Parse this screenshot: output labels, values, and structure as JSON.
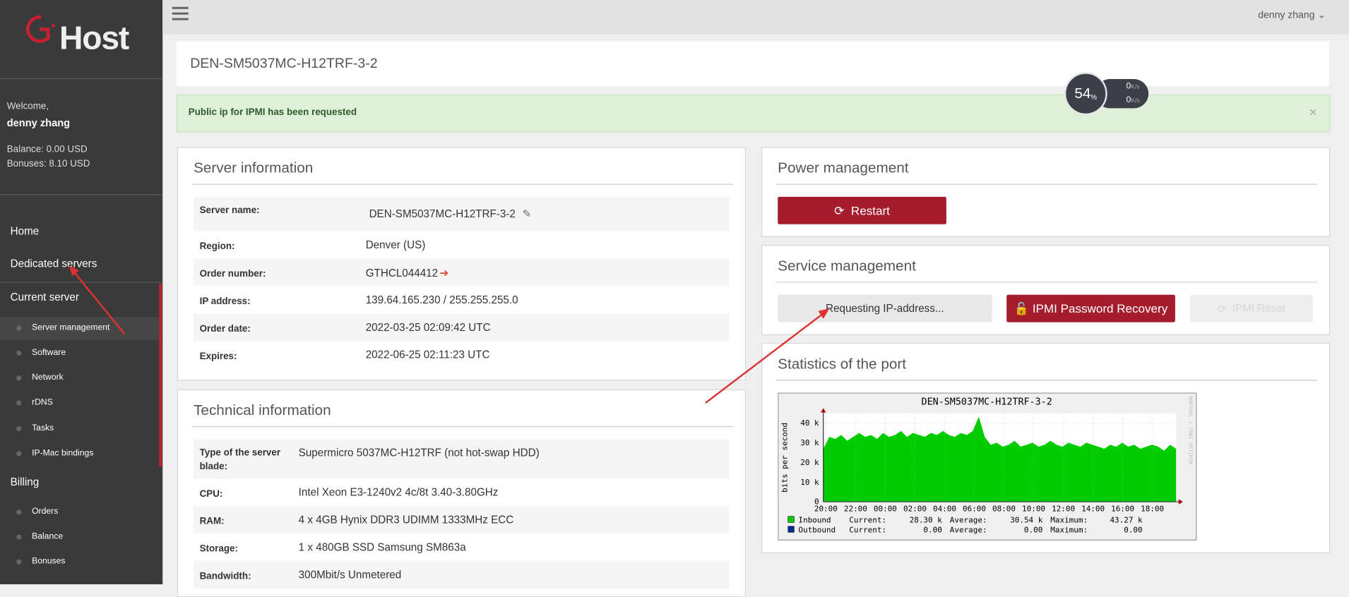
{
  "sidebar": {
    "logo": "Host",
    "welcome": "Welcome,",
    "user": "denny zhang",
    "balance": "Balance: 0.00 USD",
    "bonuses": "Bonuses: 8.10 USD",
    "menu": [
      {
        "label": "Home",
        "level": 0
      },
      {
        "label": "Dedicated servers",
        "level": 0
      },
      {
        "label": "Current server",
        "level": 0
      },
      {
        "label": "Server management",
        "level": 1,
        "active": true
      },
      {
        "label": "Software",
        "level": 1
      },
      {
        "label": "Network",
        "level": 1
      },
      {
        "label": "rDNS",
        "level": 1
      },
      {
        "label": "Tasks",
        "level": 1
      },
      {
        "label": "IP-Mac bindings",
        "level": 1
      },
      {
        "label": "Billing",
        "level": 0
      },
      {
        "label": "Orders",
        "level": 1
      },
      {
        "label": "Balance",
        "level": 1
      },
      {
        "label": "Bonuses",
        "level": 1
      }
    ]
  },
  "topbar": {
    "user": "denny zhang"
  },
  "page_title": "DEN-SM5037MC-H12TRF-3-2",
  "alert": "Public ip for IPMI has been requested",
  "widget": {
    "load": "54",
    "load_unit": "%",
    "up": "0",
    "down": "0",
    "rate_unit": "K/s"
  },
  "server_info": {
    "title": "Server information",
    "rows": [
      [
        "Server name:",
        "DEN-SM5037MC-H12TRF-3-2"
      ],
      [
        "Region:",
        "Denver (US)"
      ],
      [
        "Order number:",
        "GTHCL044412"
      ],
      [
        "IP address:",
        "139.64.165.230 / 255.255.255.0"
      ],
      [
        "Order date:",
        "2022-03-25 02:09:42 UTC"
      ],
      [
        "Expires:",
        "2022-06-25 02:11:23 UTC"
      ]
    ]
  },
  "technical_info": {
    "title": "Technical information",
    "rows": [
      [
        "Type of the server blade:",
        "Supermicro 5037MC-H12TRF (not hot-swap HDD)"
      ],
      [
        "CPU:",
        "Intel Xeon E3-1240v2 4c/8t 3.40-3.80GHz"
      ],
      [
        "RAM:",
        "4 x 4GB Hynix DDR3 UDIMM 1333MHz ECC"
      ],
      [
        "Storage:",
        "1 x 480GB SSD Samsung SM863a"
      ],
      [
        "Bandwidth:",
        "300Mbit/s Unmetered"
      ]
    ]
  },
  "power": {
    "title": "Power management",
    "restart": "Restart"
  },
  "service": {
    "title": "Service management",
    "status": "Requesting IP-address...",
    "recovery": "IPMI Password Recovery",
    "reset": "IPMI Reset"
  },
  "stats": {
    "title": "Statistics of the port",
    "graph": {
      "type": "area",
      "title": "DEN-SM5037MC-H12TRF-3-2",
      "y_label": "bits per second",
      "watermark": "RRDTOOL / TOBI OETIKER",
      "xticks": [
        "20:00",
        "22:00",
        "00:00",
        "02:00",
        "04:00",
        "06:00",
        "08:00",
        "10:00",
        "12:00",
        "14:00",
        "16:00",
        "18:00"
      ],
      "ylim": [
        0,
        45
      ],
      "yticks": [
        0,
        {
          "value": 10,
          "label": "10 k"
        },
        {
          "value": 20,
          "label": "20 k"
        },
        {
          "value": 30,
          "label": "30 k"
        },
        {
          "value": 40,
          "label": "40 k"
        }
      ],
      "color": "#00cc00",
      "values": [
        27,
        33,
        32,
        34,
        31,
        33,
        35,
        33,
        34,
        32,
        35,
        33,
        34,
        36,
        33,
        35,
        34,
        33,
        35,
        34,
        36,
        34,
        33,
        35,
        34,
        36,
        43.27,
        33,
        29,
        30,
        28,
        29,
        31,
        28,
        29,
        30,
        28,
        29,
        31,
        29,
        28,
        30,
        29,
        28,
        30,
        29,
        28,
        27,
        29,
        28,
        30,
        28,
        29,
        27,
        28,
        29,
        28,
        26,
        29,
        27
      ],
      "legend": [
        {
          "name": "Inbound",
          "color": "#00cc00",
          "cells": [
            "Current:",
            "28.30 k",
            "Average:",
            "30.54 k",
            "Maximum:",
            "43.27 k"
          ]
        },
        {
          "name": "Outbound",
          "color": "#002a97",
          "cells": [
            "Current:",
            "0.00",
            "Average:",
            "0.00",
            "Maximum:",
            "0.00"
          ]
        }
      ]
    }
  }
}
